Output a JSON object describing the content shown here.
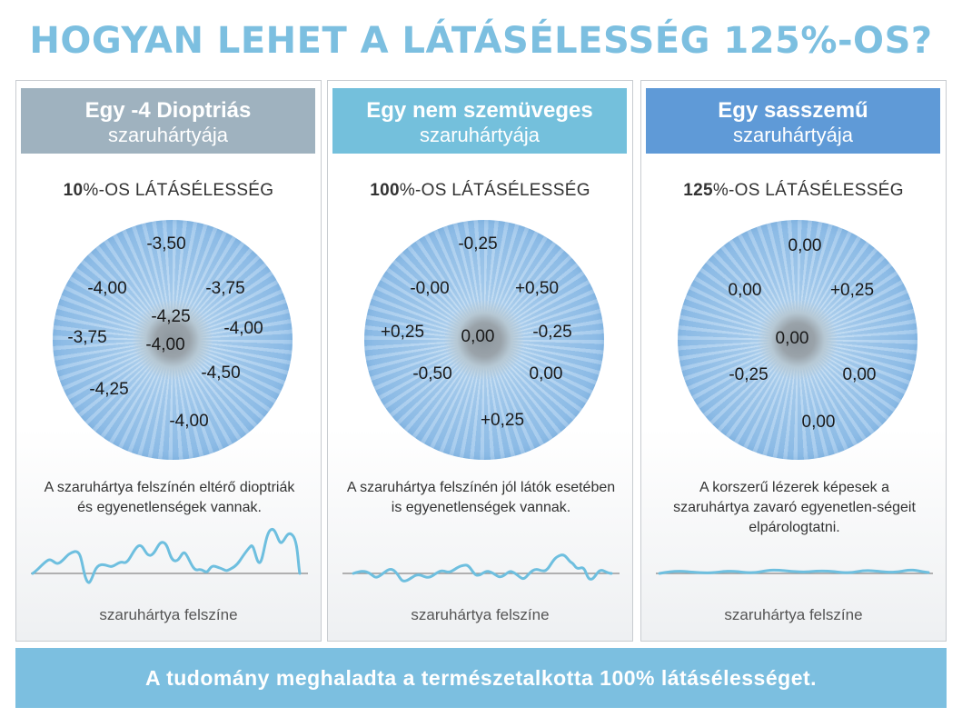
{
  "title": "HOGYAN LEHET A LÁTÁSÉLESSÉG 125%-OS?",
  "panels": [
    {
      "header_bold": "Egy -4 Dioptriás",
      "header_sub": "szaruhártyája",
      "acuity_num": "10",
      "acuity_rest": "%-OS LÁTÁSÉLESSÉG",
      "diopters": [
        "-3,50",
        "-4,00",
        "-3,75",
        "-4,25",
        "-4,00",
        "-3,75",
        "-4,00",
        "-4,50",
        "-4,25",
        "-4,00"
      ],
      "description": "A szaruhártya felszínén eltérő dioptriák és egyenetlenségek vannak.",
      "surface_label": "szaruhártya felszíne"
    },
    {
      "header_bold": "Egy nem szemüveges",
      "header_sub": "szaruhártyája",
      "acuity_num": "100",
      "acuity_rest": "%-OS LÁTÁSÉLESSÉG",
      "diopters": [
        "-0,25",
        "-0,00",
        "+0,50",
        "+0,25",
        "0,00",
        "-0,25",
        "-0,50",
        "0,00",
        "+0,25"
      ],
      "description": "A szaruhártya felszínén jól látók esetében is egyenetlenségek vannak.",
      "surface_label": "szaruhártya felszíne"
    },
    {
      "header_bold": "Egy sasszemű",
      "header_sub": "szaruhártyája",
      "acuity_num": "125",
      "acuity_rest": "%-OS LÁTÁSÉLESSÉG",
      "diopters": [
        "0,00",
        "0,00",
        "+0,25",
        "0,00",
        "-0,25",
        "0,00",
        "0,00"
      ],
      "description": "A korszerű lézerek képesek a szaruhártya zavaró egyenetlen-ségeit elpárologtatni.",
      "surface_label": "szaruhártya felszíne"
    }
  ],
  "footer": "A tudomány meghaladta a természetalkotta 100% látásélességet.",
  "colors": {
    "title": "#7cbfe0",
    "header_1": "#9fb2bf",
    "header_2": "#74c0dc",
    "header_3": "#5f9ad7",
    "wave": "#6ebfdf",
    "footer": "#7cbfe0"
  }
}
